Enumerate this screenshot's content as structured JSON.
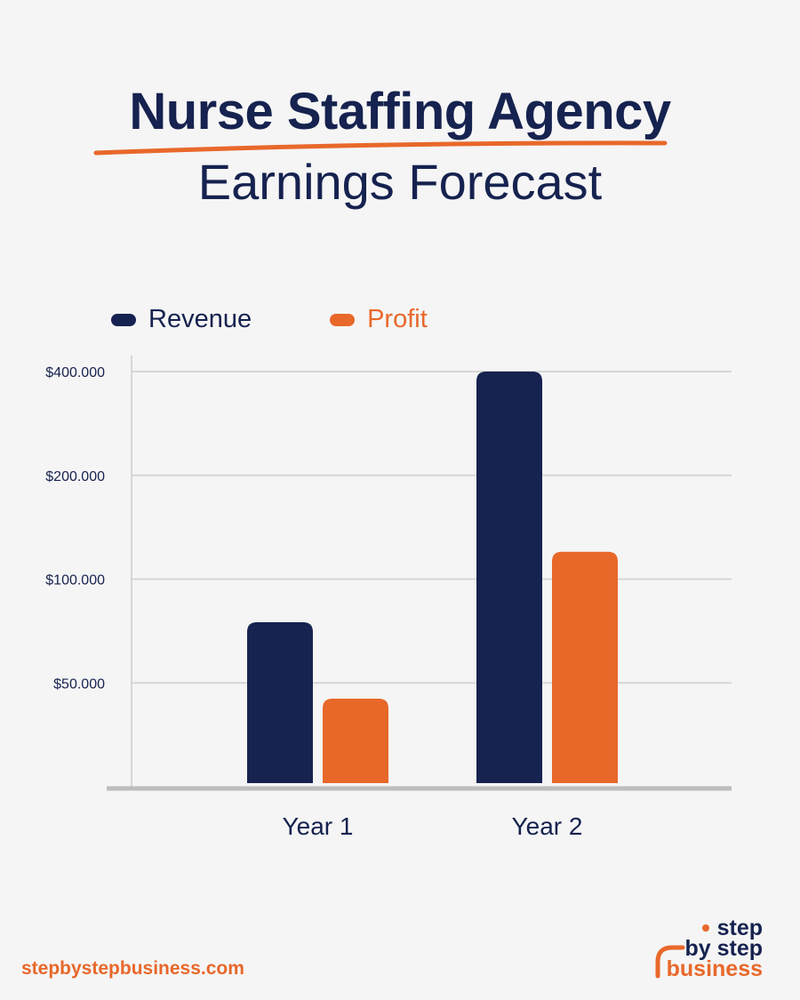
{
  "header": {
    "title": "Nurse Staffing Agency",
    "subtitle": "Earnings Forecast"
  },
  "colors": {
    "revenue": "#16224f",
    "profit": "#e8682a",
    "text": "#16224f",
    "grid": "#d6d6d6",
    "axis": "#bdbdbd"
  },
  "chart_data": {
    "type": "bar",
    "categories": [
      "Year 1",
      "Year 2"
    ],
    "series": [
      {
        "name": "Revenue",
        "values": [
          75000,
          400000
        ]
      },
      {
        "name": "Profit",
        "values": [
          45000,
          120000
        ]
      }
    ],
    "yticks": [
      "$400.000",
      "$200.000",
      "$100.000",
      "$50.000"
    ],
    "ytick_values": [
      400000,
      200000,
      100000,
      50000
    ],
    "y_scale": "log",
    "grid": true,
    "legend_position": "top-left"
  },
  "footer": {
    "url": "stepbystepbusiness.com",
    "logo_lines": [
      "step",
      "by step",
      "business"
    ]
  }
}
